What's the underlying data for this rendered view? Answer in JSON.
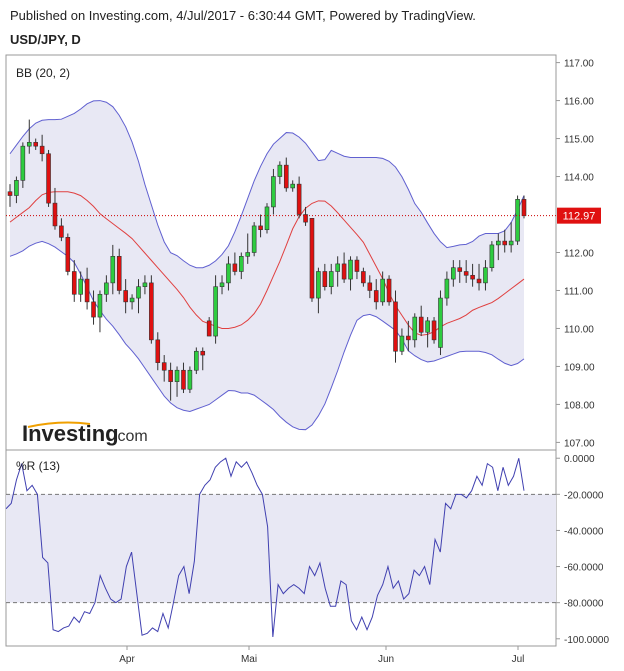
{
  "header": {
    "published": "Published on Investing.com, 4/Jul/2017 - 6:30:44 GMT, Powered by TradingView.",
    "symbol": "USD/JPY, D"
  },
  "watermark": {
    "brand": "Investing",
    "suffix": ".com"
  },
  "chart_data": [
    {
      "type": "candlestick",
      "indicator_label": "BB (20, 2)",
      "yticks": [
        "117.00",
        "116.00",
        "115.00",
        "114.00",
        "113.00",
        "112.00",
        "111.00",
        "110.00",
        "109.00",
        "108.00",
        "107.00"
      ],
      "ylim": [
        106.8,
        117.2
      ],
      "last_price": "112.97",
      "last_price_value": 112.97,
      "xticks": [
        "Apr",
        "Mai",
        "Jun",
        "Jul"
      ],
      "colors": {
        "up": "#2ecc40",
        "down": "#e01010",
        "band": "#6060d0",
        "band_fill": "#e8e8f4",
        "middle": "#e04040",
        "price_line": "#cc0000"
      },
      "candles": [
        [
          113.6,
          113.8,
          113.2,
          113.5
        ],
        [
          113.5,
          114.0,
          113.3,
          113.9
        ],
        [
          113.9,
          114.9,
          113.7,
          114.8
        ],
        [
          114.8,
          115.5,
          114.6,
          114.9
        ],
        [
          114.9,
          115.0,
          114.7,
          114.8
        ],
        [
          114.8,
          115.1,
          114.4,
          114.6
        ],
        [
          114.6,
          114.7,
          113.2,
          113.3
        ],
        [
          113.3,
          113.7,
          112.6,
          112.7
        ],
        [
          112.7,
          112.9,
          112.3,
          112.4
        ],
        [
          112.4,
          112.5,
          111.4,
          111.5
        ],
        [
          111.5,
          111.8,
          110.7,
          110.9
        ],
        [
          110.9,
          111.5,
          110.7,
          111.3
        ],
        [
          111.3,
          111.6,
          110.5,
          110.7
        ],
        [
          110.7,
          111.0,
          110.1,
          110.3
        ],
        [
          110.3,
          111.0,
          109.9,
          110.9
        ],
        [
          110.9,
          111.4,
          110.7,
          111.2
        ],
        [
          111.2,
          112.2,
          110.9,
          111.9
        ],
        [
          111.9,
          112.1,
          110.9,
          111.0
        ],
        [
          111.0,
          111.3,
          110.4,
          110.7
        ],
        [
          110.7,
          110.9,
          110.5,
          110.8
        ],
        [
          110.8,
          111.3,
          110.4,
          111.1
        ],
        [
          111.1,
          111.4,
          110.9,
          111.2
        ],
        [
          111.2,
          111.4,
          109.6,
          109.7
        ],
        [
          109.7,
          109.9,
          108.9,
          109.1
        ],
        [
          109.1,
          109.3,
          108.6,
          108.9
        ],
        [
          108.9,
          109.1,
          108.1,
          108.6
        ],
        [
          108.6,
          109.0,
          108.2,
          108.9
        ],
        [
          108.9,
          109.1,
          108.3,
          108.4
        ],
        [
          108.4,
          109.0,
          108.3,
          108.9
        ],
        [
          108.9,
          109.5,
          108.8,
          109.4
        ],
        [
          109.4,
          109.5,
          108.9,
          109.3
        ],
        [
          110.2,
          110.3,
          109.8,
          109.8
        ],
        [
          109.8,
          111.4,
          109.6,
          111.1
        ],
        [
          111.1,
          111.4,
          110.9,
          111.2
        ],
        [
          111.2,
          111.9,
          111.0,
          111.7
        ],
        [
          111.7,
          112.0,
          111.4,
          111.5
        ],
        [
          111.5,
          112.0,
          111.3,
          111.9
        ],
        [
          111.9,
          112.5,
          111.7,
          112.0
        ],
        [
          112.0,
          112.8,
          111.9,
          112.7
        ],
        [
          112.7,
          113.0,
          112.4,
          112.6
        ],
        [
          112.6,
          113.3,
          112.5,
          113.2
        ],
        [
          113.2,
          114.2,
          113.0,
          114.0
        ],
        [
          114.0,
          114.4,
          113.8,
          114.3
        ],
        [
          114.3,
          114.5,
          113.6,
          113.7
        ],
        [
          113.7,
          113.9,
          113.6,
          113.8
        ],
        [
          113.8,
          114.0,
          112.9,
          113.0
        ],
        [
          113.0,
          113.2,
          112.7,
          112.8
        ],
        [
          112.9,
          112.9,
          110.7,
          110.8
        ],
        [
          110.8,
          111.6,
          110.4,
          111.5
        ],
        [
          111.5,
          111.7,
          111.0,
          111.1
        ],
        [
          111.1,
          111.7,
          110.9,
          111.5
        ],
        [
          111.5,
          111.9,
          111.1,
          111.7
        ],
        [
          111.7,
          112.0,
          111.2,
          111.3
        ],
        [
          111.3,
          111.9,
          111.0,
          111.8
        ],
        [
          111.8,
          111.9,
          111.3,
          111.5
        ],
        [
          111.5,
          111.6,
          111.1,
          111.2
        ],
        [
          111.2,
          111.4,
          110.8,
          111.0
        ],
        [
          111.0,
          111.3,
          110.5,
          110.7
        ],
        [
          110.7,
          111.5,
          110.6,
          111.3
        ],
        [
          111.3,
          111.4,
          110.6,
          110.7
        ],
        [
          110.7,
          111.0,
          109.1,
          109.4
        ],
        [
          109.4,
          110.0,
          109.3,
          109.8
        ],
        [
          109.8,
          110.2,
          109.4,
          109.7
        ],
        [
          109.7,
          110.4,
          109.5,
          110.3
        ],
        [
          110.3,
          110.6,
          109.8,
          109.9
        ],
        [
          109.9,
          110.3,
          109.5,
          110.2
        ],
        [
          110.2,
          110.3,
          109.6,
          109.7
        ],
        [
          109.5,
          111.0,
          109.3,
          110.8
        ],
        [
          110.8,
          111.5,
          110.6,
          111.3
        ],
        [
          111.3,
          111.8,
          111.1,
          111.6
        ],
        [
          111.6,
          111.8,
          111.2,
          111.5
        ],
        [
          111.5,
          111.8,
          111.2,
          111.4
        ],
        [
          111.4,
          111.7,
          111.1,
          111.3
        ],
        [
          111.3,
          111.7,
          111.0,
          111.2
        ],
        [
          111.2,
          111.8,
          111.0,
          111.6
        ],
        [
          111.6,
          112.3,
          111.5,
          112.2
        ],
        [
          112.2,
          112.5,
          111.8,
          112.3
        ],
        [
          112.3,
          112.6,
          112.0,
          112.2
        ],
        [
          112.2,
          112.8,
          112.0,
          112.3
        ],
        [
          112.3,
          113.5,
          112.2,
          113.4
        ],
        [
          113.4,
          113.5,
          112.9,
          112.97
        ]
      ],
      "bb_upper": [
        114.6,
        114.9,
        115.2,
        115.4,
        115.5,
        115.5,
        115.5,
        115.6,
        115.7,
        115.9,
        116.0,
        116.0,
        115.9,
        115.6,
        115.2,
        114.6,
        113.8,
        113.1,
        112.4,
        112.0,
        111.9,
        111.7,
        111.6,
        111.6,
        111.7,
        111.9,
        112.2,
        112.7,
        113.3,
        113.9,
        114.4,
        114.8,
        115.0,
        115.2,
        115.1,
        114.9,
        114.6,
        114.3,
        114.7,
        114.6,
        114.5,
        114.5,
        114.5,
        114.5,
        114.5,
        114.4,
        114.2,
        113.8,
        113.3,
        113.0,
        112.6,
        112.3,
        112.1,
        112.2,
        112.2,
        112.3,
        112.5,
        112.5,
        112.5,
        112.6,
        113.0,
        113.5
      ],
      "bb_middle": [
        112.8,
        113.0,
        113.2,
        113.5,
        113.6,
        113.6,
        113.6,
        113.5,
        113.3,
        113.0,
        112.8,
        112.6,
        112.4,
        112.1,
        111.8,
        111.5,
        111.2,
        110.9,
        110.5,
        110.2,
        110.1,
        110.0,
        110.0,
        110.1,
        110.3,
        110.7,
        111.3,
        111.9,
        112.6,
        113.1,
        113.3,
        113.4,
        113.2,
        112.9,
        112.6,
        112.3,
        111.8,
        111.3,
        110.7,
        110.3,
        109.9,
        109.8,
        109.9,
        110.1,
        110.2,
        110.3,
        110.5,
        110.6,
        110.7,
        110.9,
        111.1,
        111.3
      ],
      "bb_lower": [
        111.9,
        112.0,
        112.2,
        112.3,
        112.2,
        112.0,
        111.8,
        111.3,
        110.7,
        110.3,
        110.0,
        109.6,
        109.3,
        108.9,
        108.5,
        108.1,
        107.9,
        107.8,
        107.9,
        108.0,
        108.2,
        108.4,
        108.3,
        108.3,
        108.1,
        107.9,
        107.6,
        107.4,
        107.3,
        107.5,
        108.0,
        108.7,
        109.5,
        110.2,
        110.4,
        110.3,
        110.1,
        109.9,
        109.4,
        109.2,
        109.1,
        109.2,
        109.3,
        109.4,
        109.4,
        109.4,
        109.3,
        109.1,
        109.0,
        109.2
      ]
    },
    {
      "type": "line",
      "indicator_label": "%R (13)",
      "yticks": [
        "0.0000",
        "-20.0000",
        "-40.0000",
        "-60.0000",
        "-80.0000",
        "-100.0000"
      ],
      "ylim": [
        -104,
        4
      ],
      "overbought": -20,
      "oversold": -80,
      "values": [
        -28,
        -25,
        -12,
        -3,
        -18,
        -15,
        -20,
        -55,
        -58,
        -95,
        -96,
        -94,
        -93,
        -88,
        -91,
        -85,
        -86,
        -80,
        -65,
        -72,
        -78,
        -80,
        -78,
        -60,
        -52,
        -75,
        -98,
        -97,
        -94,
        -96,
        -86,
        -94,
        -80,
        -65,
        -60,
        -75,
        -57,
        -20,
        -15,
        -12,
        -5,
        -2,
        0,
        -10,
        -2,
        -5,
        -2,
        -8,
        -15,
        -20,
        -38,
        -99,
        -70,
        -75,
        -72,
        -70,
        -72,
        -75,
        -60,
        -65,
        -58,
        -72,
        -82,
        -82,
        -68,
        -70,
        -90,
        -95,
        -88,
        -95,
        -88,
        -76,
        -70,
        -60,
        -72,
        -68,
        -78,
        -75,
        -62,
        -65,
        -60,
        -70,
        -45,
        -52,
        -25,
        -28,
        -20,
        -20,
        -22,
        -18,
        -10,
        -15,
        -3,
        -5,
        -18,
        -5,
        -15,
        -10,
        0,
        -18
      ]
    }
  ]
}
